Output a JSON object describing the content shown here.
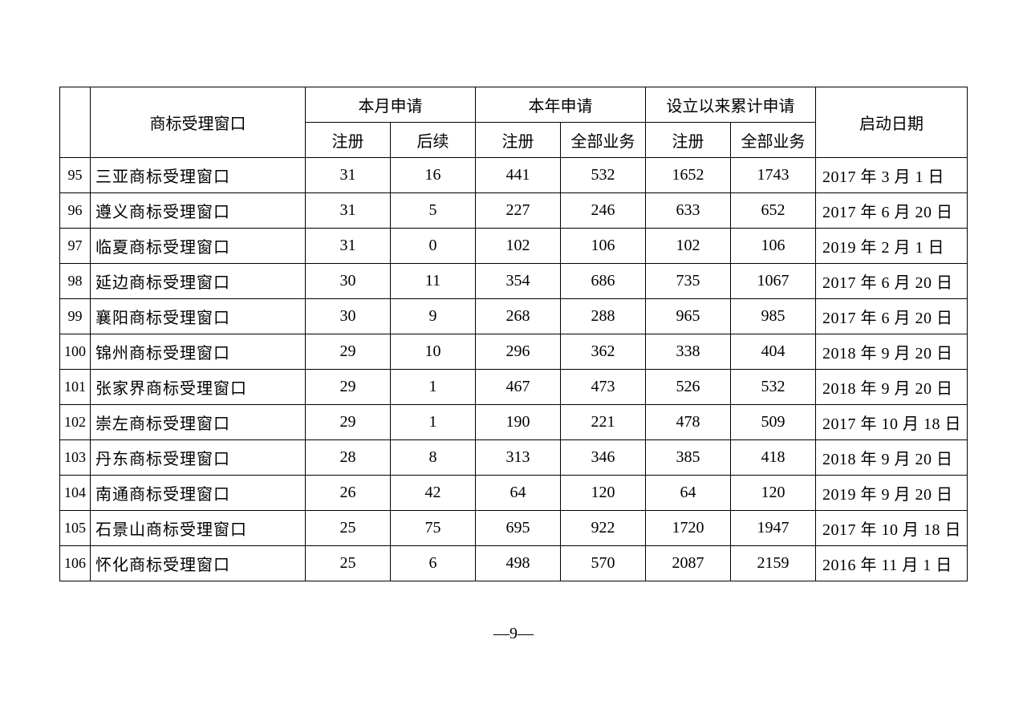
{
  "header": {
    "window": "商标受理窗口",
    "month": "本月申请",
    "year": "本年申请",
    "cumulative": "设立以来累计申请",
    "startdate": "启动日期",
    "reg": "注册",
    "follow": "后续",
    "all": "全部业务"
  },
  "rows": [
    {
      "idx": "95",
      "window": "三亚商标受理窗口",
      "m_reg": "31",
      "m_follow": "16",
      "y_reg": "441",
      "y_all": "532",
      "c_reg": "1652",
      "c_all": "1743",
      "date": "2017 年 3 月 1 日"
    },
    {
      "idx": "96",
      "window": "遵义商标受理窗口",
      "m_reg": "31",
      "m_follow": "5",
      "y_reg": "227",
      "y_all": "246",
      "c_reg": "633",
      "c_all": "652",
      "date": "2017 年 6 月 20 日"
    },
    {
      "idx": "97",
      "window": "临夏商标受理窗口",
      "m_reg": "31",
      "m_follow": "0",
      "y_reg": "102",
      "y_all": "106",
      "c_reg": "102",
      "c_all": "106",
      "date": "2019 年 2 月 1 日"
    },
    {
      "idx": "98",
      "window": "延边商标受理窗口",
      "m_reg": "30",
      "m_follow": "11",
      "y_reg": "354",
      "y_all": "686",
      "c_reg": "735",
      "c_all": "1067",
      "date": "2017 年 6 月 20 日"
    },
    {
      "idx": "99",
      "window": "襄阳商标受理窗口",
      "m_reg": "30",
      "m_follow": "9",
      "y_reg": "268",
      "y_all": "288",
      "c_reg": "965",
      "c_all": "985",
      "date": "2017 年 6 月 20 日"
    },
    {
      "idx": "100",
      "window": "锦州商标受理窗口",
      "m_reg": "29",
      "m_follow": "10",
      "y_reg": "296",
      "y_all": "362",
      "c_reg": "338",
      "c_all": "404",
      "date": "2018 年 9 月 20 日"
    },
    {
      "idx": "101",
      "window": "张家界商标受理窗口",
      "m_reg": "29",
      "m_follow": "1",
      "y_reg": "467",
      "y_all": "473",
      "c_reg": "526",
      "c_all": "532",
      "date": "2018 年 9 月 20 日"
    },
    {
      "idx": "102",
      "window": "崇左商标受理窗口",
      "m_reg": "29",
      "m_follow": "1",
      "y_reg": "190",
      "y_all": "221",
      "c_reg": "478",
      "c_all": "509",
      "date": "2017 年 10 月 18 日"
    },
    {
      "idx": "103",
      "window": "丹东商标受理窗口",
      "m_reg": "28",
      "m_follow": "8",
      "y_reg": "313",
      "y_all": "346",
      "c_reg": "385",
      "c_all": "418",
      "date": "2018 年 9 月 20 日"
    },
    {
      "idx": "104",
      "window": "南通商标受理窗口",
      "m_reg": "26",
      "m_follow": "42",
      "y_reg": "64",
      "y_all": "120",
      "c_reg": "64",
      "c_all": "120",
      "date": "2019 年 9 月 20 日"
    },
    {
      "idx": "105",
      "window": "石景山商标受理窗口",
      "m_reg": "25",
      "m_follow": "75",
      "y_reg": "695",
      "y_all": "922",
      "c_reg": "1720",
      "c_all": "1947",
      "date": "2017 年 10 月 18 日"
    },
    {
      "idx": "106",
      "window": "怀化商标受理窗口",
      "m_reg": "25",
      "m_follow": "6",
      "y_reg": "498",
      "y_all": "570",
      "c_reg": "2087",
      "c_all": "2159",
      "date": "2016 年 11 月 1 日"
    }
  ],
  "page": "—9—"
}
